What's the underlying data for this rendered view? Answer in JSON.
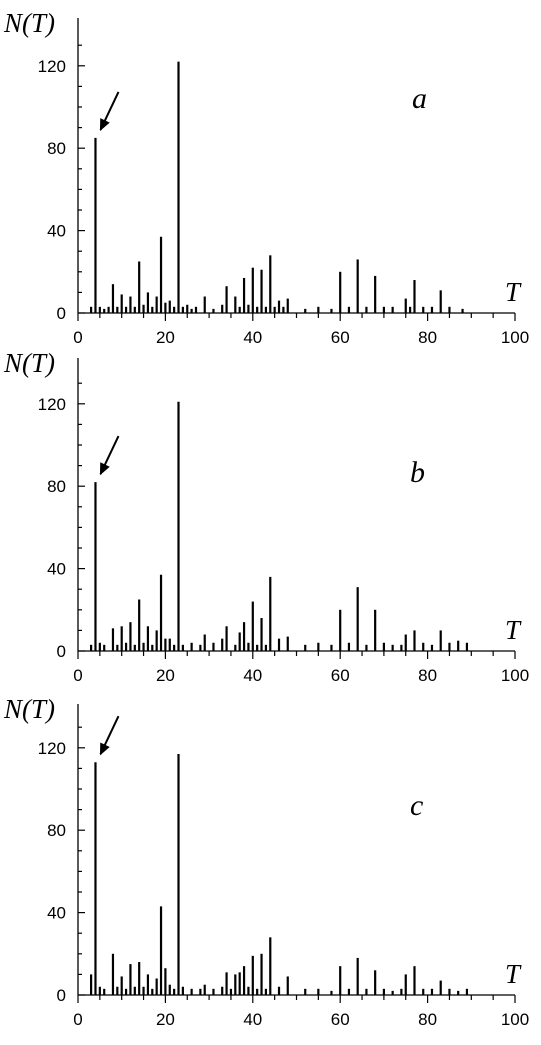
{
  "chart_data": [
    {
      "type": "bar",
      "panel_label": "a",
      "xlabel": "T",
      "ylabel": "N(T)",
      "xlim": [
        0,
        100
      ],
      "ylim": [
        0,
        120
      ],
      "xticks": [
        "0",
        "20",
        "40",
        "60",
        "80",
        "100"
      ],
      "yticks": [
        "0",
        "40",
        "80",
        "120"
      ],
      "arrow_at": 4,
      "x": [
        3,
        4,
        5,
        6,
        7,
        8,
        9,
        10,
        11,
        12,
        13,
        14,
        15,
        16,
        17,
        18,
        19,
        20,
        21,
        22,
        23,
        24,
        25,
        26,
        27,
        29,
        31,
        33,
        34,
        36,
        37,
        38,
        39,
        40,
        41,
        42,
        43,
        44,
        45,
        46,
        47,
        48,
        52,
        55,
        58,
        60,
        62,
        64,
        66,
        68,
        70,
        72,
        75,
        76,
        77,
        79,
        81,
        83,
        85,
        88
      ],
      "values": [
        3,
        85,
        3,
        2,
        3,
        14,
        3,
        9,
        3,
        8,
        3,
        25,
        4,
        10,
        3,
        8,
        37,
        5,
        6,
        3,
        122,
        3,
        4,
        2,
        3,
        8,
        2,
        4,
        13,
        8,
        3,
        17,
        4,
        22,
        3,
        21,
        3,
        28,
        3,
        6,
        3,
        7,
        2,
        3,
        2,
        20,
        3,
        26,
        3,
        18,
        3,
        3,
        7,
        3,
        16,
        3,
        3,
        11,
        3,
        2
      ]
    },
    {
      "type": "bar",
      "panel_label": "b",
      "xlabel": "T",
      "ylabel": "N(T)",
      "xlim": [
        0,
        100
      ],
      "ylim": [
        0,
        120
      ],
      "xticks": [
        "0",
        "20",
        "40",
        "60",
        "80",
        "100"
      ],
      "yticks": [
        "0",
        "40",
        "80",
        "120"
      ],
      "arrow_at": 4,
      "x": [
        3,
        4,
        5,
        6,
        8,
        9,
        10,
        11,
        12,
        13,
        14,
        15,
        16,
        17,
        18,
        19,
        20,
        21,
        22,
        23,
        24,
        26,
        28,
        29,
        31,
        33,
        34,
        36,
        37,
        38,
        39,
        40,
        41,
        42,
        43,
        44,
        46,
        48,
        52,
        55,
        58,
        60,
        62,
        64,
        66,
        68,
        70,
        72,
        74,
        75,
        77,
        79,
        81,
        83,
        85,
        87,
        89
      ],
      "values": [
        3,
        82,
        4,
        3,
        11,
        3,
        12,
        4,
        14,
        3,
        25,
        4,
        12,
        3,
        10,
        37,
        6,
        6,
        3,
        121,
        3,
        4,
        3,
        8,
        4,
        6,
        12,
        3,
        9,
        14,
        4,
        24,
        3,
        16,
        3,
        36,
        6,
        7,
        3,
        4,
        3,
        20,
        4,
        31,
        3,
        20,
        4,
        3,
        3,
        8,
        10,
        4,
        3,
        10,
        4,
        5,
        4
      ]
    },
    {
      "type": "bar",
      "panel_label": "c",
      "xlabel": "T",
      "ylabel": "N(T)",
      "xlim": [
        0,
        100
      ],
      "ylim": [
        0,
        120
      ],
      "xticks": [
        "0",
        "20",
        "40",
        "60",
        "80",
        "100"
      ],
      "yticks": [
        "0",
        "40",
        "80",
        "120"
      ],
      "arrow_at": 4,
      "x": [
        3,
        4,
        5,
        6,
        8,
        9,
        10,
        11,
        12,
        13,
        14,
        15,
        16,
        17,
        18,
        19,
        20,
        21,
        22,
        23,
        24,
        26,
        28,
        29,
        31,
        33,
        34,
        35,
        36,
        37,
        38,
        39,
        40,
        41,
        42,
        43,
        44,
        46,
        48,
        52,
        55,
        58,
        60,
        62,
        64,
        66,
        68,
        70,
        72,
        74,
        75,
        77,
        79,
        81,
        83,
        85,
        87,
        89
      ],
      "values": [
        10,
        113,
        4,
        3,
        20,
        4,
        9,
        3,
        15,
        4,
        16,
        4,
        10,
        3,
        8,
        43,
        13,
        5,
        3,
        117,
        4,
        3,
        3,
        5,
        3,
        4,
        11,
        3,
        10,
        11,
        14,
        4,
        19,
        3,
        20,
        3,
        28,
        4,
        9,
        3,
        3,
        2,
        14,
        3,
        18,
        3,
        12,
        3,
        2,
        3,
        10,
        14,
        3,
        3,
        7,
        3,
        2,
        3
      ]
    }
  ]
}
